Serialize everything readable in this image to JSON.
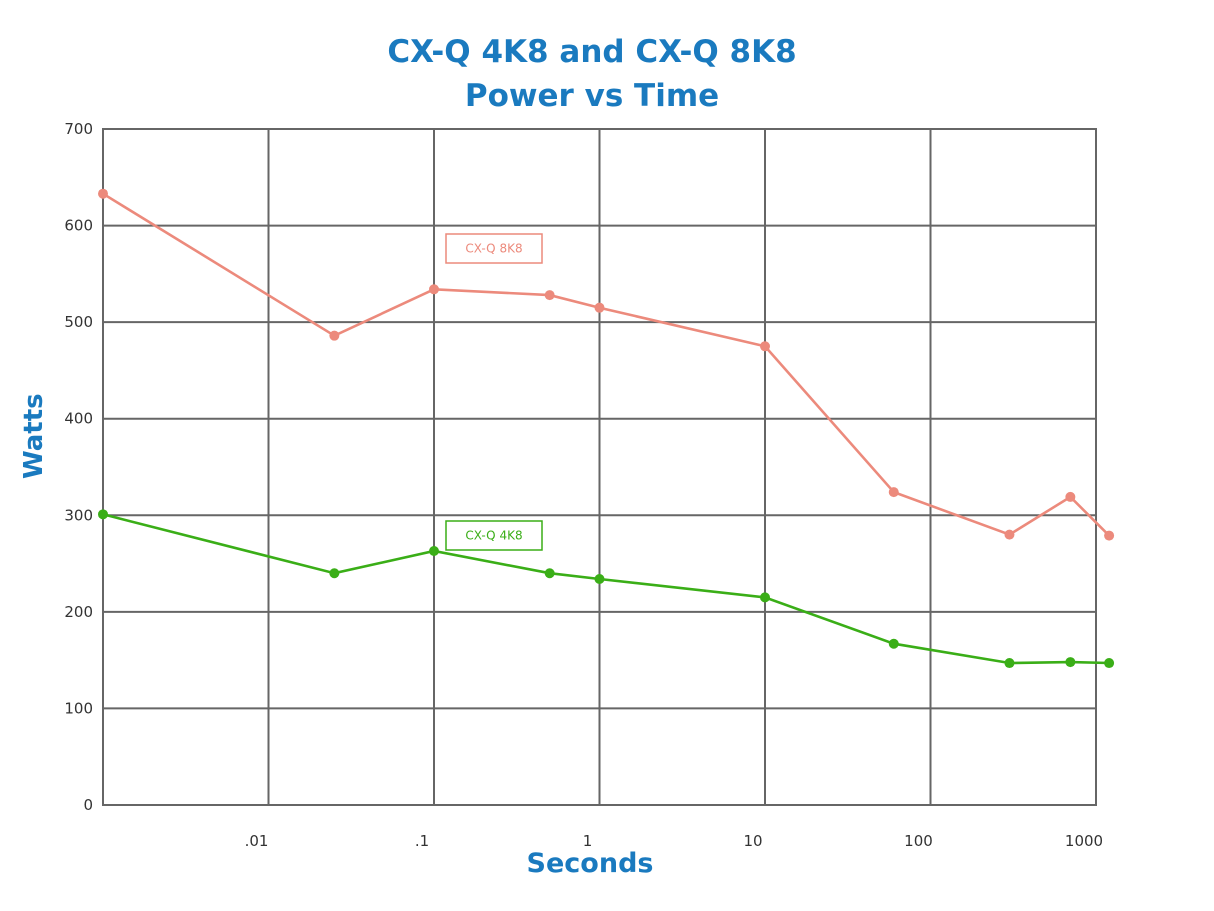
{
  "chart_data": {
    "type": "line",
    "title": "CX-Q 4K8 and CX-Q 8K8",
    "subtitle": "Power vs Time",
    "xlabel": "Seconds",
    "ylabel": "Watts",
    "x_scale": "log",
    "xlim": [
      0.001,
      1000
    ],
    "ylim": [
      0,
      700
    ],
    "grid": true,
    "x_ticks": [
      {
        "value": 0.01,
        "label": ".01"
      },
      {
        "value": 0.1,
        "label": ".1"
      },
      {
        "value": 1,
        "label": "1"
      },
      {
        "value": 10,
        "label": "10"
      },
      {
        "value": 100,
        "label": "100"
      },
      {
        "value": 1000,
        "label": "1000"
      }
    ],
    "y_ticks": [
      0,
      100,
      200,
      300,
      400,
      500,
      600,
      700
    ],
    "series": [
      {
        "name": "CX-Q 8K8",
        "color": "#ec8a7c",
        "points": [
          {
            "x": 0.001,
            "y": 633
          },
          {
            "x": 0.025,
            "y": 486
          },
          {
            "x": 0.1,
            "y": 534
          },
          {
            "x": 0.5,
            "y": 528
          },
          {
            "x": 1,
            "y": 515
          },
          {
            "x": 10,
            "y": 475
          },
          {
            "x": 60,
            "y": 324
          },
          {
            "x": 300,
            "y": 280
          },
          {
            "x": 700,
            "y": 319
          },
          {
            "x": 1200,
            "y": 279
          }
        ]
      },
      {
        "name": "CX-Q 4K8",
        "color": "#3aae17",
        "points": [
          {
            "x": 0.001,
            "y": 301
          },
          {
            "x": 0.025,
            "y": 240
          },
          {
            "x": 0.1,
            "y": 263
          },
          {
            "x": 0.5,
            "y": 240
          },
          {
            "x": 1,
            "y": 234
          },
          {
            "x": 10,
            "y": 215
          },
          {
            "x": 60,
            "y": 167
          },
          {
            "x": 300,
            "y": 147
          },
          {
            "x": 700,
            "y": 148
          },
          {
            "x": 1200,
            "y": 147
          }
        ]
      }
    ]
  }
}
